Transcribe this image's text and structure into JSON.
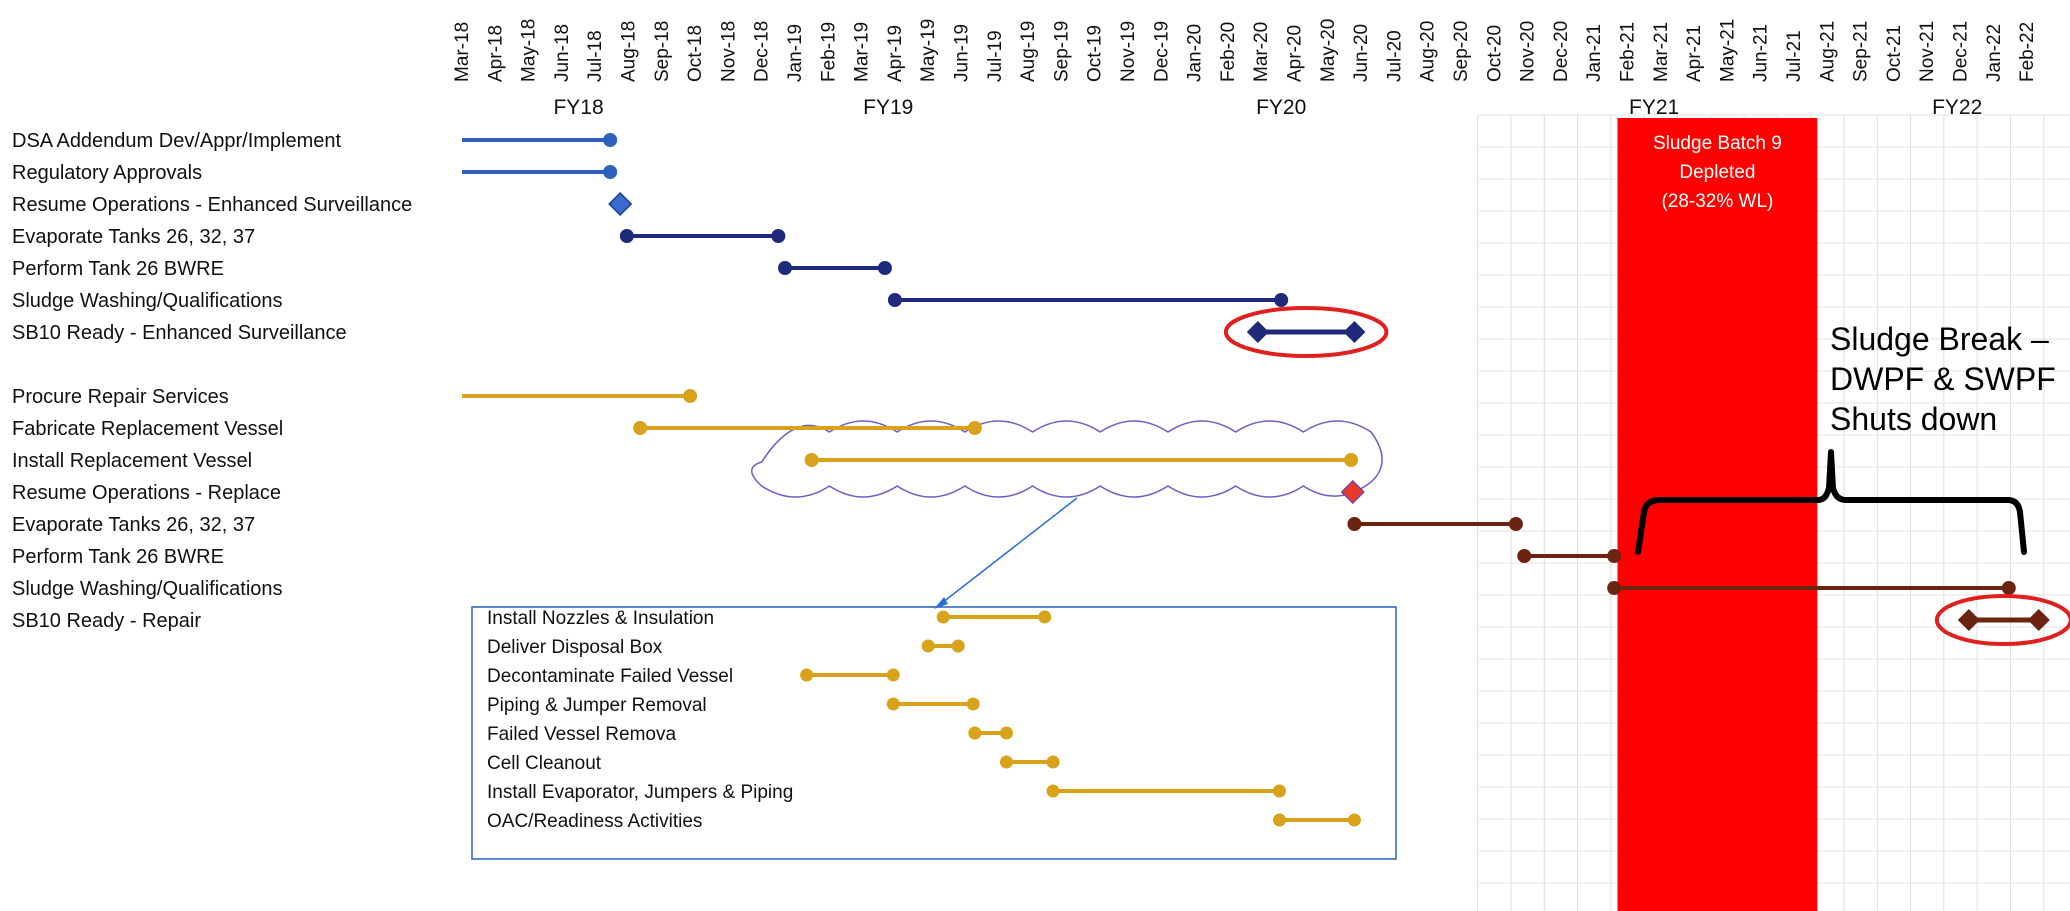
{
  "chart_data": {
    "type": "gantt",
    "months": [
      "Mar-18",
      "Apr-18",
      "May-18",
      "Jun-18",
      "Jul-18",
      "Aug-18",
      "Sep-18",
      "Oct-18",
      "Nov-18",
      "Dec-18",
      "Jan-19",
      "Feb-19",
      "Mar-19",
      "Apr-19",
      "May-19",
      "Jun-19",
      "Jul-19",
      "Aug-19",
      "Sep-19",
      "Oct-19",
      "Nov-19",
      "Dec-19",
      "Jan-20",
      "Feb-20",
      "Mar-20",
      "Apr-20",
      "May-20",
      "Jun-20",
      "Jul-20",
      "Aug-20",
      "Sep-20",
      "Oct-20",
      "Nov-20",
      "Dec-20",
      "Jan-21",
      "Feb-21",
      "Mar-21",
      "Apr-21",
      "May-21",
      "Jun-21",
      "Jul-21",
      "Aug-21",
      "Sep-21",
      "Oct-21",
      "Nov-21",
      "Dec-21",
      "Jan-22",
      "Feb-22"
    ],
    "fiscal_years": [
      {
        "label": "FY18",
        "center": 3.5
      },
      {
        "label": "FY19",
        "center": 12.8
      },
      {
        "label": "FY20",
        "center": 24.6
      },
      {
        "label": "FY21",
        "center": 35.8
      },
      {
        "label": "FY22",
        "center": 44.9
      }
    ],
    "colors": {
      "blue": "#2f5fbf",
      "navy": "#1f2a7a",
      "gold": "#d9a21b",
      "brown": "#6b2410",
      "red_band": "#ff0000",
      "highlight": "#e0201e",
      "cloud": "#6b5fc8",
      "callout_box": "#2a62b8",
      "brace": "#000000"
    },
    "tasks": [
      {
        "label": "DSA Addendum Dev/Appr/Implement",
        "start": 0,
        "end": 4.45,
        "color": "blue",
        "style": "bar"
      },
      {
        "label": "Regulatory Approvals",
        "start": 0,
        "end": 4.45,
        "color": "blue",
        "style": "bar"
      },
      {
        "label": "Resume Operations - Enhanced Surveillance",
        "start": 4.75,
        "end": 4.75,
        "color": "blue",
        "style": "milestone"
      },
      {
        "label": "Evaporate Tanks 26, 32, 37",
        "start": 4.95,
        "end": 9.5,
        "color": "navy",
        "style": "bar"
      },
      {
        "label": "Perform Tank 26 BWRE",
        "start": 9.7,
        "end": 12.7,
        "color": "navy",
        "style": "bar"
      },
      {
        "label": "Sludge Washing/Qualifications",
        "start": 13.0,
        "end": 24.6,
        "color": "navy",
        "style": "bar"
      },
      {
        "label": "SB10 Ready - Enhanced Surveillance",
        "start": 23.9,
        "end": 26.8,
        "color": "navy",
        "style": "diamond-bar",
        "highlighted": true
      },
      {
        "label": "Procure Repair Services",
        "start": 0,
        "end": 6.85,
        "color": "gold",
        "style": "bar"
      },
      {
        "label": "Fabricate Replacement Vessel",
        "start": 5.35,
        "end": 15.4,
        "color": "gold",
        "style": "bar"
      },
      {
        "label": "Install Replacement Vessel",
        "start": 10.5,
        "end": 26.7,
        "color": "gold",
        "style": "bar",
        "clouded": true
      },
      {
        "label": "Resume Operations - Replace",
        "start": 26.75,
        "end": 26.75,
        "color": "red",
        "style": "milestone"
      },
      {
        "label": "Evaporate Tanks 26, 32, 37",
        "start": 26.8,
        "end": 31.65,
        "color": "brown",
        "style": "bar"
      },
      {
        "label": "Perform Tank 26 BWRE",
        "start": 31.9,
        "end": 34.6,
        "color": "brown",
        "style": "bar"
      },
      {
        "label": "Sludge Washing/Qualifications",
        "start": 34.6,
        "end": 46.45,
        "color": "brown",
        "style": "bar"
      },
      {
        "label": "SB10 Ready - Repair",
        "start": 45.25,
        "end": 47.35,
        "color": "brown",
        "style": "diamond-bar",
        "highlighted": true
      }
    ],
    "install_subtasks": [
      {
        "label": "Install Nozzles & Insulation",
        "start": 14.45,
        "end": 17.5
      },
      {
        "label": "Deliver Disposal Box",
        "start": 14.0,
        "end": 14.9
      },
      {
        "label": "Decontaminate Failed Vessel",
        "start": 10.35,
        "end": 12.95
      },
      {
        "label": "Piping & Jumper Removal",
        "start": 12.95,
        "end": 15.35
      },
      {
        "label": "Failed Vessel Remova",
        "start": 15.4,
        "end": 16.35
      },
      {
        "label": "Cell Cleanout",
        "start": 16.35,
        "end": 17.75
      },
      {
        "label": "Install Evaporator, Jumpers & Piping",
        "start": 17.75,
        "end": 24.55
      },
      {
        "label": "OAC/Readiness Activities",
        "start": 24.55,
        "end": 26.8
      }
    ],
    "band": {
      "start": 34.7,
      "end": 40.7,
      "lines": [
        "Sludge Batch 9",
        "Depleted",
        "(28-32% WL)"
      ]
    },
    "annotation": {
      "lines": [
        "Sludge Break –",
        "DWPF & SWPF",
        "Shuts down"
      ]
    }
  }
}
